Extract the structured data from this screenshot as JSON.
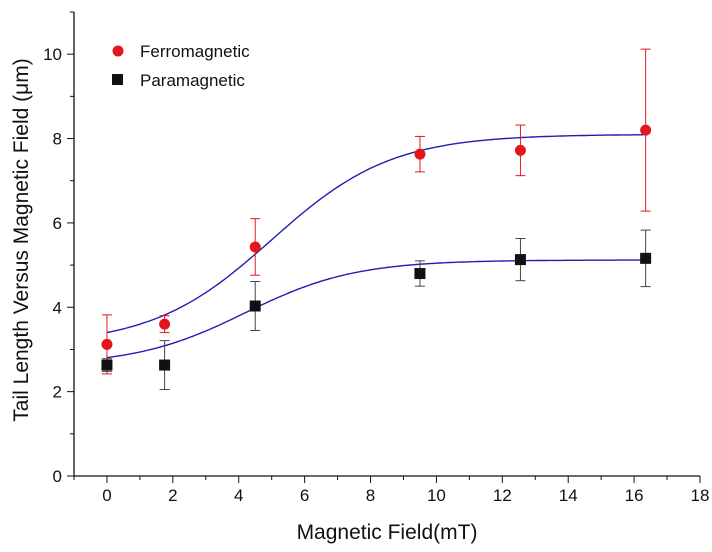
{
  "chart_data": {
    "type": "scatter",
    "title": "",
    "xlabel": "Magnetic Field(mT)",
    "ylabel": "Tail Length Versus Magnetic Field (μm)",
    "xlim": [
      -1,
      18
    ],
    "ylim": [
      0,
      11
    ],
    "xticks": [
      0,
      2,
      4,
      6,
      8,
      10,
      12,
      14,
      16,
      18
    ],
    "yticks": [
      0,
      2,
      4,
      6,
      8,
      10
    ],
    "grid": false,
    "legend_position": "top-left",
    "fit_line_color": "#1f1fb0",
    "series": [
      {
        "name": "Ferromagnetic",
        "marker": "circle",
        "color": "#e3161e",
        "error_color": "#e3161e",
        "points": [
          {
            "x": 0,
            "y": 3.12,
            "err": 0.7
          },
          {
            "x": 1.75,
            "y": 3.6,
            "err": 0.2
          },
          {
            "x": 4.5,
            "y": 5.43,
            "err": 0.67
          },
          {
            "x": 9.5,
            "y": 7.63,
            "err": 0.42
          },
          {
            "x": 12.55,
            "y": 7.72,
            "err": 0.6
          },
          {
            "x": 16.35,
            "y": 8.2,
            "err": 1.92
          }
        ],
        "fit": {
          "base": 3.1,
          "top": 8.1,
          "x0": 5.0,
          "k": 0.55
        }
      },
      {
        "name": "Paramagnetic",
        "marker": "square",
        "color": "#111111",
        "error_color": "#444444",
        "points": [
          {
            "x": 0,
            "y": 2.63,
            "err": 0.15
          },
          {
            "x": 1.75,
            "y": 2.63,
            "err": 0.58
          },
          {
            "x": 4.5,
            "y": 4.03,
            "err": 0.58
          },
          {
            "x": 9.5,
            "y": 4.8,
            "err": 0.3
          },
          {
            "x": 12.55,
            "y": 5.13,
            "err": 0.5
          },
          {
            "x": 16.35,
            "y": 5.16,
            "err": 0.67
          }
        ],
        "fit": {
          "base": 2.62,
          "top": 5.12,
          "x0": 4.2,
          "k": 0.6
        }
      }
    ]
  }
}
